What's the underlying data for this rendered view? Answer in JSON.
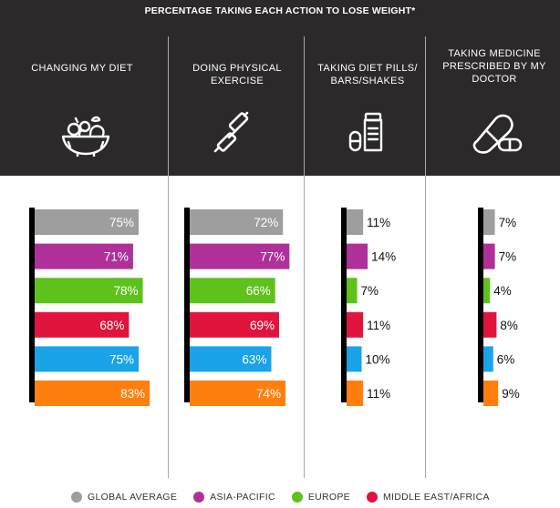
{
  "header": {
    "title": "PERCENTAGE TAKING EACH ACTION TO LOSE WEIGHT*"
  },
  "columns": [
    {
      "title": "CHANGING MY DIET",
      "icon": "salad-bowl-icon"
    },
    {
      "title": "DOING PHYSICAL EXERCISE",
      "icon": "dumbbell-icon"
    },
    {
      "title": "TAKING DIET PILLS/ BARS/SHAKES",
      "icon": "pill-bottle-icon"
    },
    {
      "title": "TAKING MEDICINE PRESCRIBED BY MY DOCTOR",
      "icon": "capsule-icon"
    }
  ],
  "legend": [
    {
      "label": "GLOBAL AVERAGE",
      "color": "#9e9e9e"
    },
    {
      "label": "ASIA-PACIFIC",
      "color": "#b0309a"
    },
    {
      "label": "EUROPE",
      "color": "#5ec21c"
    },
    {
      "label": "MIDDLE EAST/AFRICA",
      "color": "#e0143c"
    }
  ],
  "chart_data": {
    "type": "bar",
    "title": "PERCENTAGE TAKING EACH ACTION TO LOSE WEIGHT*",
    "categories": [
      "CHANGING MY DIET",
      "DOING PHYSICAL EXERCISE",
      "TAKING DIET PILLS/ BARS/SHAKES",
      "TAKING MEDICINE PRESCRIBED BY MY DOCTOR"
    ],
    "series": [
      {
        "name": "GLOBAL AVERAGE",
        "color": "#9e9e9e",
        "values": [
          75,
          72,
          11,
          7
        ]
      },
      {
        "name": "ASIA-PACIFIC",
        "color": "#b0309a",
        "values": [
          71,
          77,
          14,
          7
        ]
      },
      {
        "name": "EUROPE",
        "color": "#5ec21c",
        "values": [
          78,
          66,
          7,
          4
        ]
      },
      {
        "name": "MIDDLE EAST/AFRICA",
        "color": "#e0143c",
        "values": [
          68,
          69,
          11,
          8
        ]
      },
      {
        "color": "#1aa3e8",
        "values": [
          75,
          63,
          10,
          6
        ]
      },
      {
        "color": "#ff7f0e",
        "values": [
          83,
          74,
          11,
          9
        ]
      }
    ],
    "labels": [
      [
        "75%",
        "71%",
        "78%",
        "68%",
        "75%",
        "83%"
      ],
      [
        "72%",
        "77%",
        "66%",
        "69%",
        "63%",
        "74%"
      ],
      [
        "11%",
        "14%",
        "7%",
        "11%",
        "10%",
        "11%"
      ],
      [
        "7%",
        "7%",
        "4%",
        "8%",
        "6%",
        "9%"
      ]
    ],
    "orientation": "horizontal",
    "grid": false,
    "legend_position": "bottom"
  }
}
